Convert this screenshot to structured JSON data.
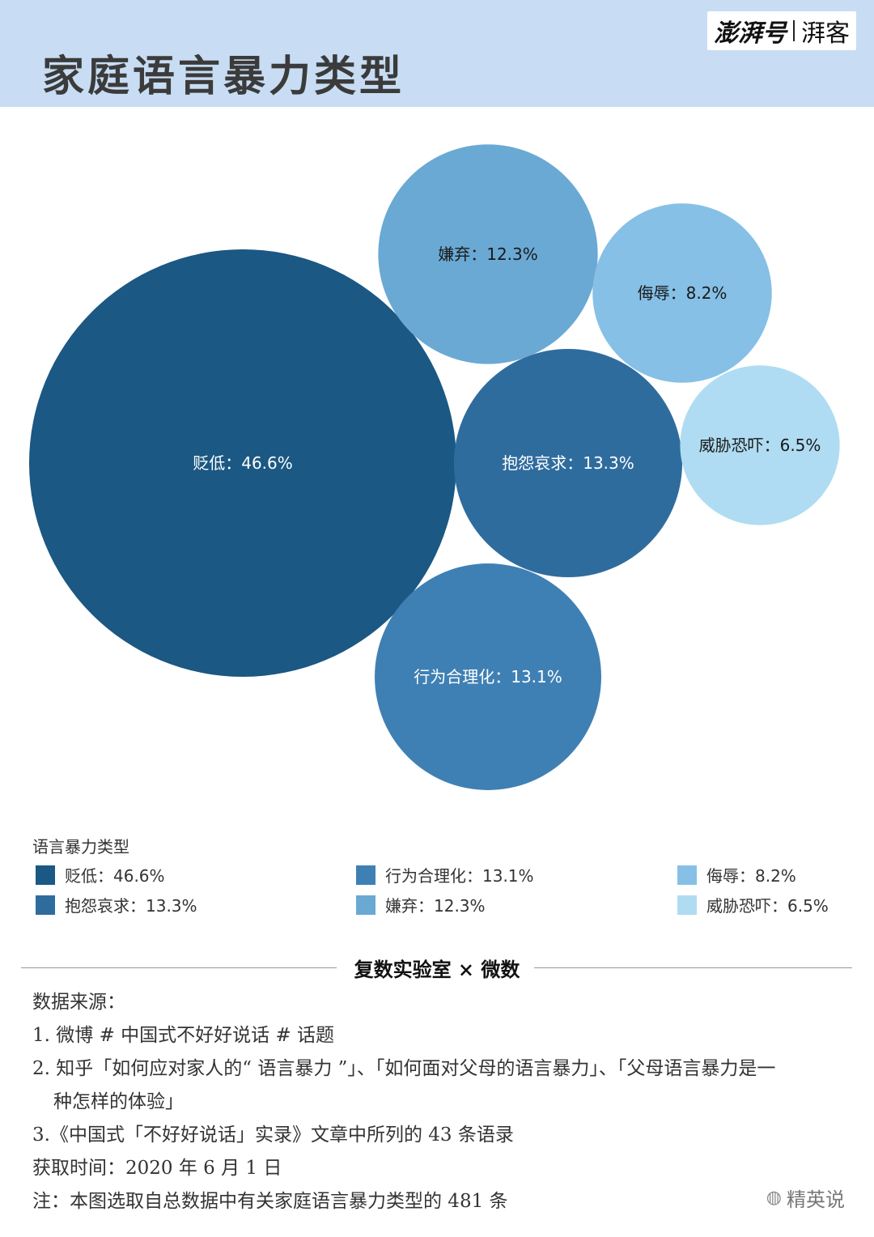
{
  "header": {
    "title": "家庭语言暴力类型",
    "brand_main": "澎湃号",
    "brand_sub": "湃客"
  },
  "chart_data": {
    "type": "bubble",
    "series_colors": [
      "#1b5883",
      "#2f6c9e",
      "#3f80b4",
      "#6aa9d4",
      "#86c0e6",
      "#afdcf2"
    ],
    "items": [
      {
        "name": "贬低",
        "value": 46.6,
        "label": "贬低：46.6%",
        "color": "#1b5883",
        "text_color": "#ffffff"
      },
      {
        "name": "抱怨哀求",
        "value": 13.3,
        "label": "抱怨哀求：13.3%",
        "color": "#2f6c9e",
        "text_color": "#ffffff"
      },
      {
        "name": "行为合理化",
        "value": 13.1,
        "label": "行为合理化：13.1%",
        "color": "#3f80b4",
        "text_color": "#ffffff"
      },
      {
        "name": "嫌弃",
        "value": 12.3,
        "label": "嫌弃：12.3%",
        "color": "#6aa9d4",
        "text_color": "#1a1a1a"
      },
      {
        "name": "侮辱",
        "value": 8.2,
        "label": "侮辱：8.2%",
        "color": "#86c0e6",
        "text_color": "#1a1a1a"
      },
      {
        "name": "威胁恐吓",
        "value": 6.5,
        "label": "威胁恐吓：6.5%",
        "color": "#afdcf2",
        "text_color": "#1a1a1a"
      }
    ],
    "legend_title": "语言暴力类型",
    "legend": [
      {
        "label": "贬低：46.6%",
        "color": "#1b5883"
      },
      {
        "label": "抱怨哀求：13.3%",
        "color": "#2f6c9e"
      },
      {
        "label": "行为合理化：13.1%",
        "color": "#3f80b4"
      },
      {
        "label": "嫌弃：12.3%",
        "color": "#6aa9d4"
      },
      {
        "label": "侮辱：8.2%",
        "color": "#86c0e6"
      },
      {
        "label": "威胁恐吓：6.5%",
        "color": "#afdcf2"
      }
    ]
  },
  "footer": {
    "collab": "复数实验室 × 微数",
    "notes": [
      "数据来源：",
      "1. 微博 # 中国式不好好说话 # 话题",
      "2. 知乎「如何应对家人的“ 语言暴力 ”」、「如何面对父母的语言暴力」、「父母语言暴力是一",
      "种怎样的体验」",
      "3.《中国式「不好好说话」实录》文章中所列的 43 条语录",
      "获取时间：2020 年 6 月 1 日",
      "注：本图选取自总数据中有关家庭语言暴力类型的 481 条"
    ],
    "watermark": "精英说",
    "watermark_icon": "wechat-icon"
  }
}
